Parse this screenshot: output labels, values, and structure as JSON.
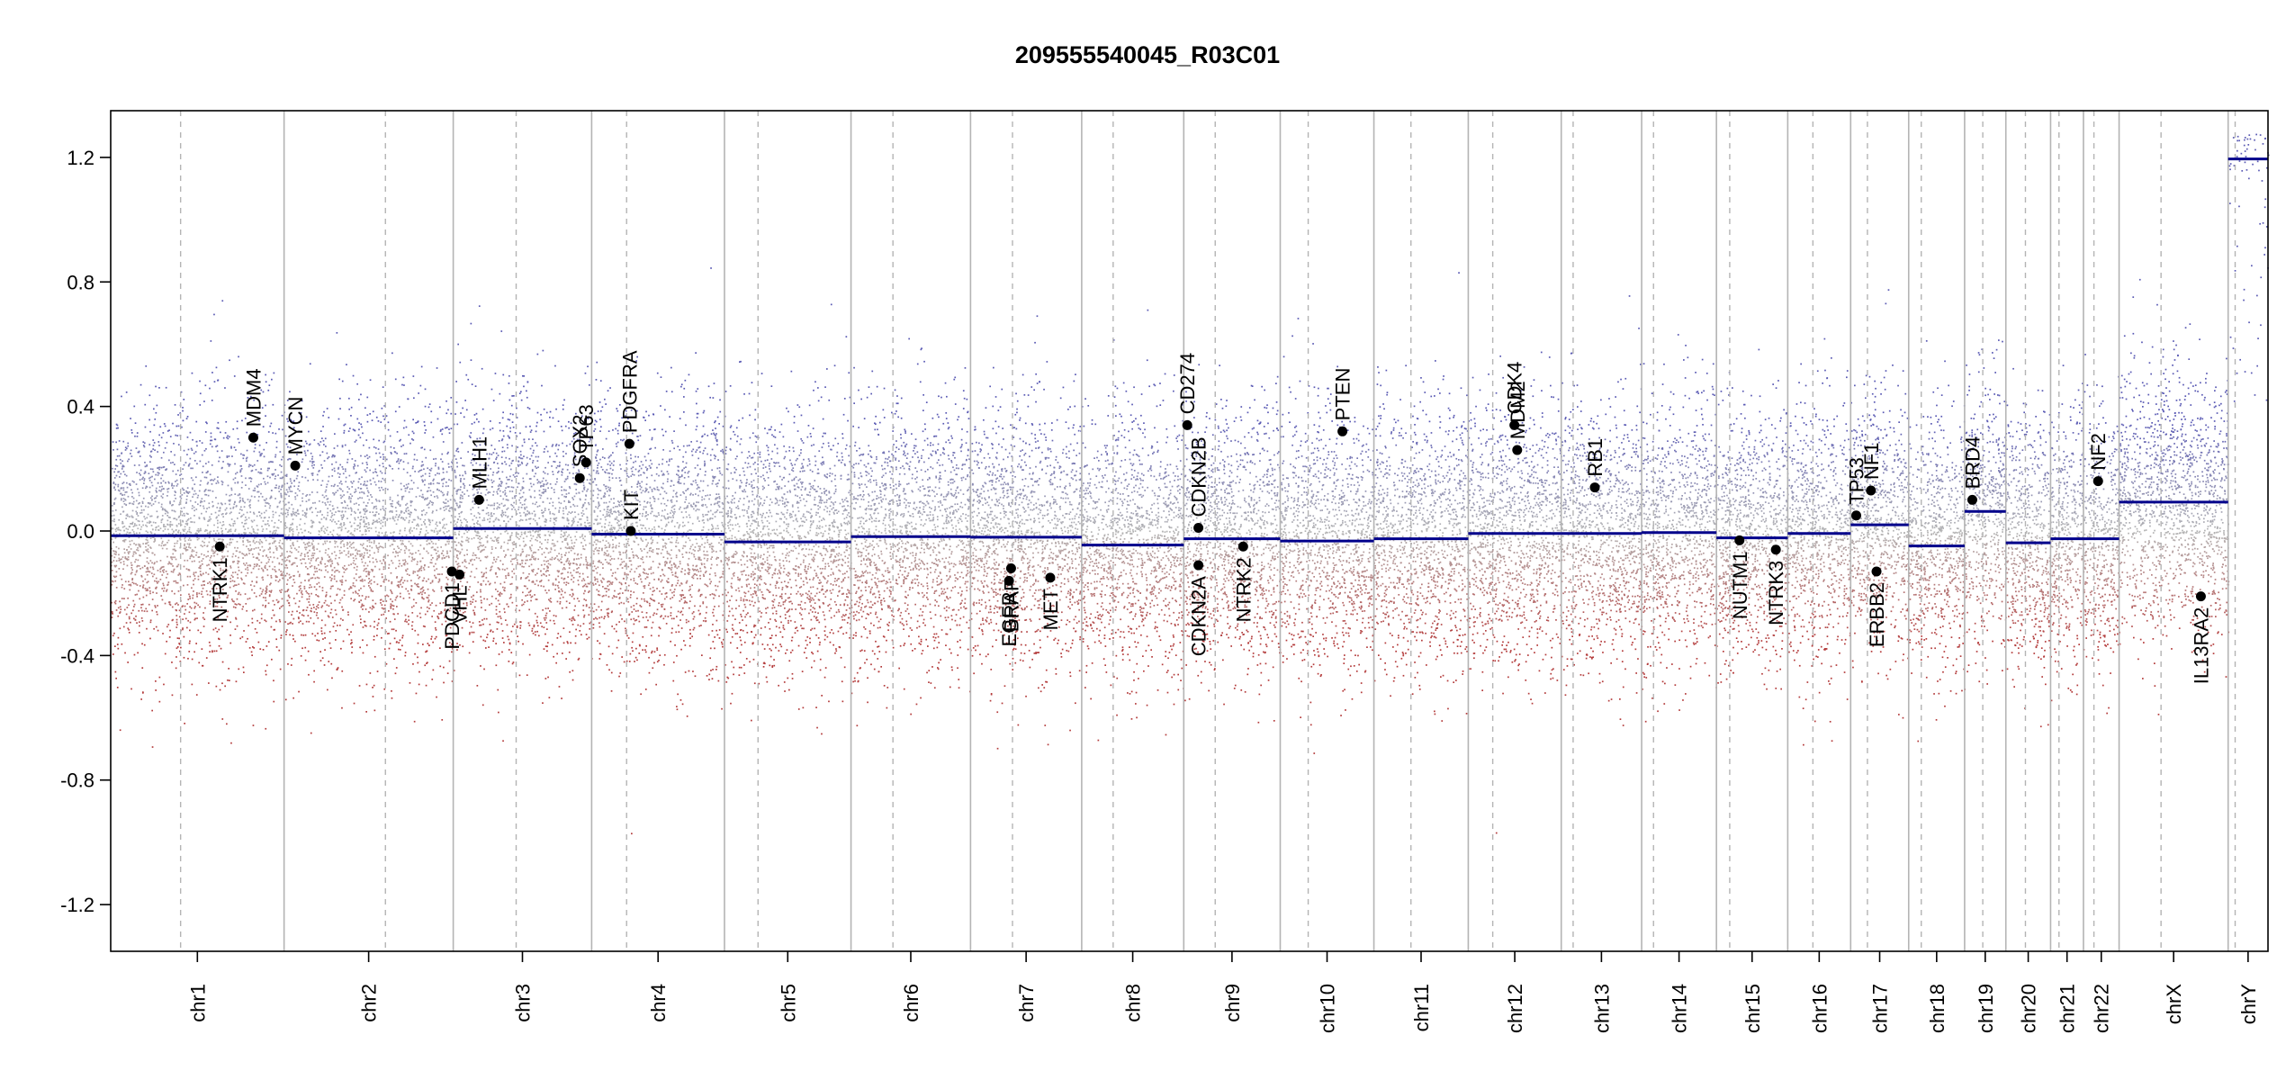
{
  "chart_data": {
    "type": "scatter",
    "title": "209555540045_R03C01",
    "xlabel": "",
    "ylabel": "",
    "ylim": [
      -1.35,
      1.35
    ],
    "y_ticks": [
      -1.2,
      -0.8,
      -0.4,
      0.0,
      0.4,
      0.8,
      1.2
    ],
    "y_tick_labels": [
      "-1.2",
      "-0.8",
      "-0.4",
      "0.0",
      "0.4",
      "0.8",
      "1.2"
    ],
    "grid": false,
    "colors": {
      "gain": "#5a5ab4",
      "loss": "#b43c3c",
      "neutral": "#b4b4b4",
      "segment": "#00008b",
      "boundary": "#b4b4b4",
      "gene_point": "#000000"
    },
    "chromosomes": [
      {
        "name": "chr1",
        "start": 0,
        "end": 248,
        "center": 100,
        "segment": -0.015
      },
      {
        "name": "chr2",
        "start": 248,
        "end": 490,
        "center": 145,
        "segment": -0.022
      },
      {
        "name": "chr3",
        "start": 490,
        "end": 688,
        "center": 90,
        "segment": 0.008
      },
      {
        "name": "chr4",
        "start": 688,
        "end": 878,
        "center": 50,
        "segment": -0.01
      },
      {
        "name": "chr5",
        "start": 878,
        "end": 1059,
        "center": 48,
        "segment": -0.035
      },
      {
        "name": "chr6",
        "start": 1059,
        "end": 1230,
        "center": 60,
        "segment": -0.018
      },
      {
        "name": "chr7",
        "start": 1230,
        "end": 1389,
        "center": 60,
        "segment": -0.02
      },
      {
        "name": "chr8",
        "start": 1389,
        "end": 1535,
        "center": 45,
        "segment": -0.045
      },
      {
        "name": "chr9",
        "start": 1535,
        "end": 1673,
        "center": 45,
        "segment": -0.025
      },
      {
        "name": "chr10",
        "start": 1673,
        "end": 1807,
        "center": 40,
        "segment": -0.032
      },
      {
        "name": "chr11",
        "start": 1807,
        "end": 1942,
        "center": 53,
        "segment": -0.025
      },
      {
        "name": "chr12",
        "start": 1942,
        "end": 2075,
        "center": 35,
        "segment": -0.008
      },
      {
        "name": "chr13",
        "start": 2075,
        "end": 2190,
        "center": 17,
        "segment": -0.008
      },
      {
        "name": "chr14",
        "start": 2190,
        "end": 2297,
        "center": 17,
        "segment": -0.005
      },
      {
        "name": "chr15",
        "start": 2297,
        "end": 2399,
        "center": 19,
        "segment": -0.022
      },
      {
        "name": "chr16",
        "start": 2399,
        "end": 2489,
        "center": 36,
        "segment": -0.008
      },
      {
        "name": "chr17",
        "start": 2489,
        "end": 2572,
        "center": 24,
        "segment": 0.02
      },
      {
        "name": "chr18",
        "start": 2572,
        "end": 2652,
        "center": 18,
        "segment": -0.048
      },
      {
        "name": "chr19",
        "start": 2652,
        "end": 2711,
        "center": 26,
        "segment": 0.063
      },
      {
        "name": "chr20",
        "start": 2711,
        "end": 2775,
        "center": 28,
        "segment": -0.038
      },
      {
        "name": "chr21",
        "start": 2775,
        "end": 2822,
        "center": 12,
        "segment": -0.025
      },
      {
        "name": "chr22",
        "start": 2822,
        "end": 2873,
        "center": 15,
        "segment": -0.025
      },
      {
        "name": "chrX",
        "start": 2873,
        "end": 3029,
        "center": 60,
        "segment": 0.093
      },
      {
        "name": "chrY",
        "start": 3029,
        "end": 3086,
        "center": 10,
        "segment": 1.195
      }
    ],
    "genes": [
      {
        "name": "NTRK1",
        "x": 156,
        "y": -0.05,
        "label_side": "below"
      },
      {
        "name": "MDM4",
        "x": 204,
        "y": 0.3,
        "label_side": "above"
      },
      {
        "name": "MYCN",
        "x": 264,
        "y": 0.21,
        "label_side": "above"
      },
      {
        "name": "PDCD1",
        "x": 488,
        "y": -0.13,
        "label_side": "below"
      },
      {
        "name": "VHL",
        "x": 499,
        "y": -0.14,
        "label_side": "below"
      },
      {
        "name": "MLH1",
        "x": 527,
        "y": 0.1,
        "label_side": "above"
      },
      {
        "name": "SOX2",
        "x": 671,
        "y": 0.17,
        "label_side": "above"
      },
      {
        "name": "TP63",
        "x": 680,
        "y": 0.22,
        "label_side": "above"
      },
      {
        "name": "PDGFRA",
        "x": 742,
        "y": 0.28,
        "label_side": "above"
      },
      {
        "name": "KIT",
        "x": 744,
        "y": 0.0,
        "label_side": "above"
      },
      {
        "name": "EGFR",
        "x": 1285,
        "y": -0.16,
        "label_side": "below"
      },
      {
        "name": "BRAF",
        "x": 1288,
        "y": -0.12,
        "label_side": "below"
      },
      {
        "name": "MET",
        "x": 1344,
        "y": -0.15,
        "label_side": "below"
      },
      {
        "name": "CD274",
        "x": 1540,
        "y": 0.34,
        "label_side": "above"
      },
      {
        "name": "CDKN2B",
        "x": 1556,
        "y": 0.01,
        "label_side": "above"
      },
      {
        "name": "CDKN2A",
        "x": 1556,
        "y": -0.11,
        "label_side": "below"
      },
      {
        "name": "NTRK2",
        "x": 1620,
        "y": -0.05,
        "label_side": "below"
      },
      {
        "name": "PTEN",
        "x": 1762,
        "y": 0.32,
        "label_side": "above"
      },
      {
        "name": "CDK4",
        "x": 2008,
        "y": 0.34,
        "label_side": "above"
      },
      {
        "name": "MDM2",
        "x": 2012,
        "y": 0.26,
        "label_side": "above"
      },
      {
        "name": "RB1",
        "x": 2123,
        "y": 0.14,
        "label_side": "above"
      },
      {
        "name": "NUTM1",
        "x": 2330,
        "y": -0.03,
        "label_side": "below"
      },
      {
        "name": "NTRK3",
        "x": 2382,
        "y": -0.06,
        "label_side": "below"
      },
      {
        "name": "TP53",
        "x": 2497,
        "y": 0.05,
        "label_side": "above"
      },
      {
        "name": "NF1",
        "x": 2518,
        "y": 0.13,
        "label_side": "above"
      },
      {
        "name": "ERBB2",
        "x": 2526,
        "y": -0.13,
        "label_side": "below"
      },
      {
        "name": "BRD4",
        "x": 2663,
        "y": 0.1,
        "label_side": "above"
      },
      {
        "name": "NF2",
        "x": 2843,
        "y": 0.16,
        "label_side": "above"
      },
      {
        "name": "IL13RA2",
        "x": 2990,
        "y": -0.21,
        "label_side": "below"
      }
    ]
  }
}
